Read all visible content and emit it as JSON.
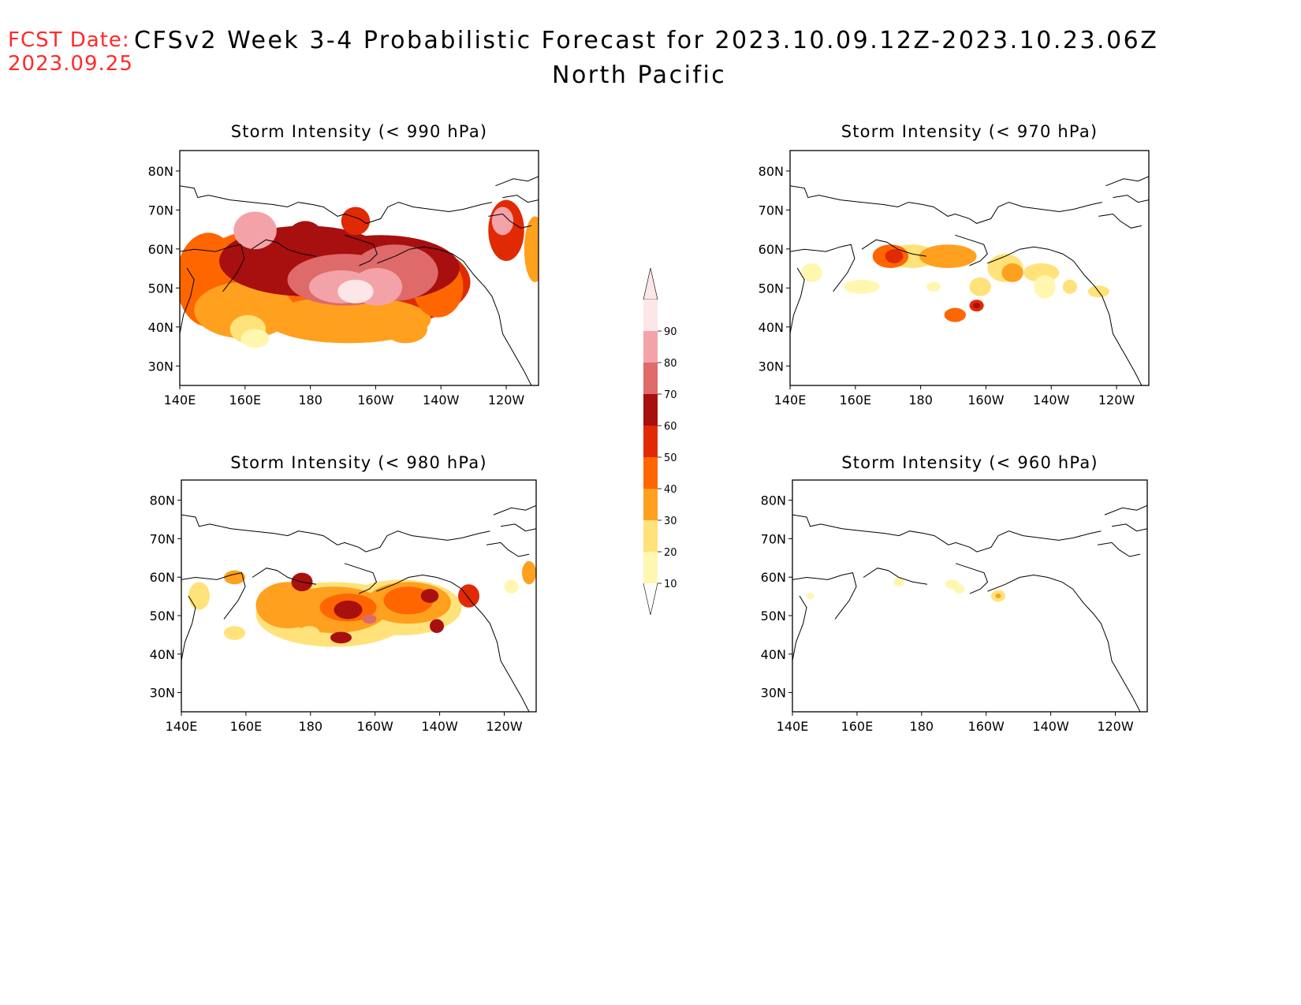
{
  "header": {
    "fcst_label": "FCST Date:",
    "fcst_date": "2023.09.25",
    "title": "CFSv2 Week 3-4 Probabilistic Forecast for 2023.10.09.12Z-2023.10.23.06Z",
    "region": "North Pacific"
  },
  "axes": {
    "lon_labels": [
      "140E",
      "160E",
      "180",
      "160W",
      "140W",
      "120W"
    ],
    "lat_labels": [
      "80N",
      "70N",
      "60N",
      "50N",
      "40N",
      "30N"
    ]
  },
  "panels": [
    {
      "id": "p990",
      "title": "Storm Intensity (< 990 hPa)"
    },
    {
      "id": "p970",
      "title": "Storm Intensity (< 970 hPa)"
    },
    {
      "id": "p980",
      "title": "Storm Intensity (< 980 hPa)"
    },
    {
      "id": "p960",
      "title": "Storm Intensity (< 960 hPa)"
    }
  ],
  "colorbar": {
    "levels": [
      "90",
      "80",
      "70",
      "60",
      "50",
      "40",
      "30",
      "20",
      "10"
    ],
    "colors": [
      "#fde6e8",
      "#f3a3a8",
      "#de6a6a",
      "#a80f0f",
      "#e02a05",
      "#ff6600",
      "#ffa01e",
      "#ffe27a",
      "#fff7b0"
    ]
  }
}
